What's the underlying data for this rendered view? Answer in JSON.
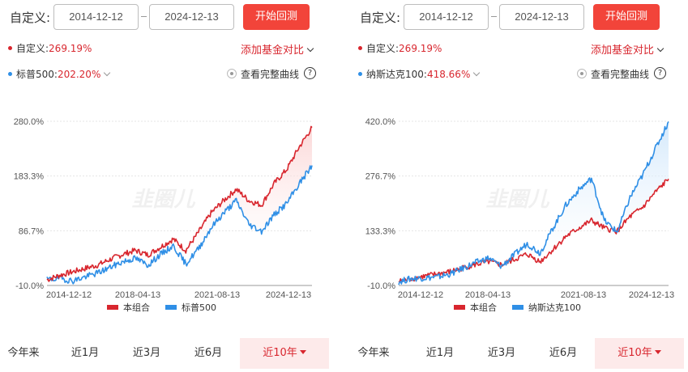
{
  "panels": [
    {
      "custom_label": "自定义:",
      "start_date": "2014-12-12",
      "end_date": "2024-12-13",
      "start_button": "开始回测",
      "portfolio_name": "自定义:",
      "portfolio_value": "269.19%",
      "add_compare": "添加基金对比",
      "benchmark_name": "标普500:",
      "benchmark_value": "202.20%",
      "full_curve": "查看完整曲线",
      "help": "?",
      "watermark": "韭圈儿",
      "legend": [
        "本组合",
        "标普500"
      ],
      "tabs": [
        {
          "label": "今年来",
          "active": false
        },
        {
          "label": "近1月",
          "active": false
        },
        {
          "label": "近3月",
          "active": false
        },
        {
          "label": "近6月",
          "active": false
        },
        {
          "label": "近10年",
          "active": true
        }
      ]
    },
    {
      "custom_label": "自定义:",
      "start_date": "2014-12-12",
      "end_date": "2024-12-13",
      "start_button": "开始回测",
      "portfolio_name": "自定义:",
      "portfolio_value": "269.19%",
      "add_compare": "添加基金对比",
      "benchmark_name": "纳斯达克100:",
      "benchmark_value": "418.66%",
      "full_curve": "查看完整曲线",
      "help": "?",
      "watermark": "韭圈儿",
      "legend": [
        "本组合",
        "纳斯达克100"
      ],
      "tabs": [
        {
          "label": "今年来",
          "active": false
        },
        {
          "label": "近1月",
          "active": false
        },
        {
          "label": "近3月",
          "active": false
        },
        {
          "label": "近6月",
          "active": false
        },
        {
          "label": "近10年",
          "active": true
        }
      ]
    }
  ],
  "colors": {
    "portfolio": "#d8262e",
    "benchmark": "#2f8fe6",
    "button": "#f2443a",
    "active_tab_bg": "#fdeaea"
  },
  "chart_data": [
    {
      "type": "line",
      "x_ticks": [
        "2014-12-12",
        "2018-04-13",
        "2021-08-13",
        "2024-12-13"
      ],
      "y_ticks": [
        "280.0%",
        "183.3%",
        "86.7%",
        "-10.0%"
      ],
      "ylim": [
        -10,
        280
      ],
      "x": [
        "2014-12",
        "2015-06",
        "2015-12",
        "2016-06",
        "2016-12",
        "2017-06",
        "2017-12",
        "2018-06",
        "2018-12",
        "2019-06",
        "2019-12",
        "2020-03",
        "2020-06",
        "2020-12",
        "2021-06",
        "2021-12",
        "2022-06",
        "2022-10",
        "2023-06",
        "2023-12",
        "2024-06",
        "2024-12"
      ],
      "series": [
        {
          "name": "本组合",
          "values": [
            0,
            8,
            14,
            20,
            26,
            36,
            45,
            52,
            44,
            58,
            72,
            52,
            84,
            118,
            140,
            160,
            140,
            132,
            170,
            195,
            235,
            269
          ]
        },
        {
          "name": "标普500",
          "values": [
            0,
            3,
            -2,
            5,
            12,
            22,
            32,
            38,
            26,
            45,
            60,
            28,
            55,
            92,
            118,
            140,
            98,
            86,
            115,
            135,
            170,
            202
          ]
        }
      ]
    },
    {
      "type": "line",
      "x_ticks": [
        "2014-12-12",
        "2018-04-13",
        "2021-08-13",
        "2024-12-13"
      ],
      "y_ticks": [
        "420.0%",
        "276.7%",
        "133.3%",
        "-10.0%"
      ],
      "ylim": [
        -10,
        420
      ],
      "x": [
        "2014-12",
        "2015-06",
        "2015-12",
        "2016-06",
        "2016-12",
        "2017-06",
        "2017-12",
        "2018-06",
        "2018-12",
        "2019-06",
        "2019-12",
        "2020-03",
        "2020-06",
        "2020-12",
        "2021-06",
        "2021-12",
        "2022-06",
        "2022-10",
        "2023-06",
        "2023-12",
        "2024-06",
        "2024-12"
      ],
      "series": [
        {
          "name": "本组合",
          "values": [
            0,
            8,
            14,
            20,
            26,
            36,
            45,
            52,
            44,
            58,
            72,
            52,
            84,
            118,
            140,
            160,
            140,
            132,
            170,
            195,
            235,
            269
          ]
        },
        {
          "name": "纳斯达克100",
          "values": [
            0,
            8,
            10,
            12,
            20,
            35,
            50,
            62,
            40,
            70,
            100,
            75,
            140,
            200,
            240,
            270,
            160,
            130,
            220,
            280,
            350,
            419
          ]
        }
      ]
    }
  ]
}
